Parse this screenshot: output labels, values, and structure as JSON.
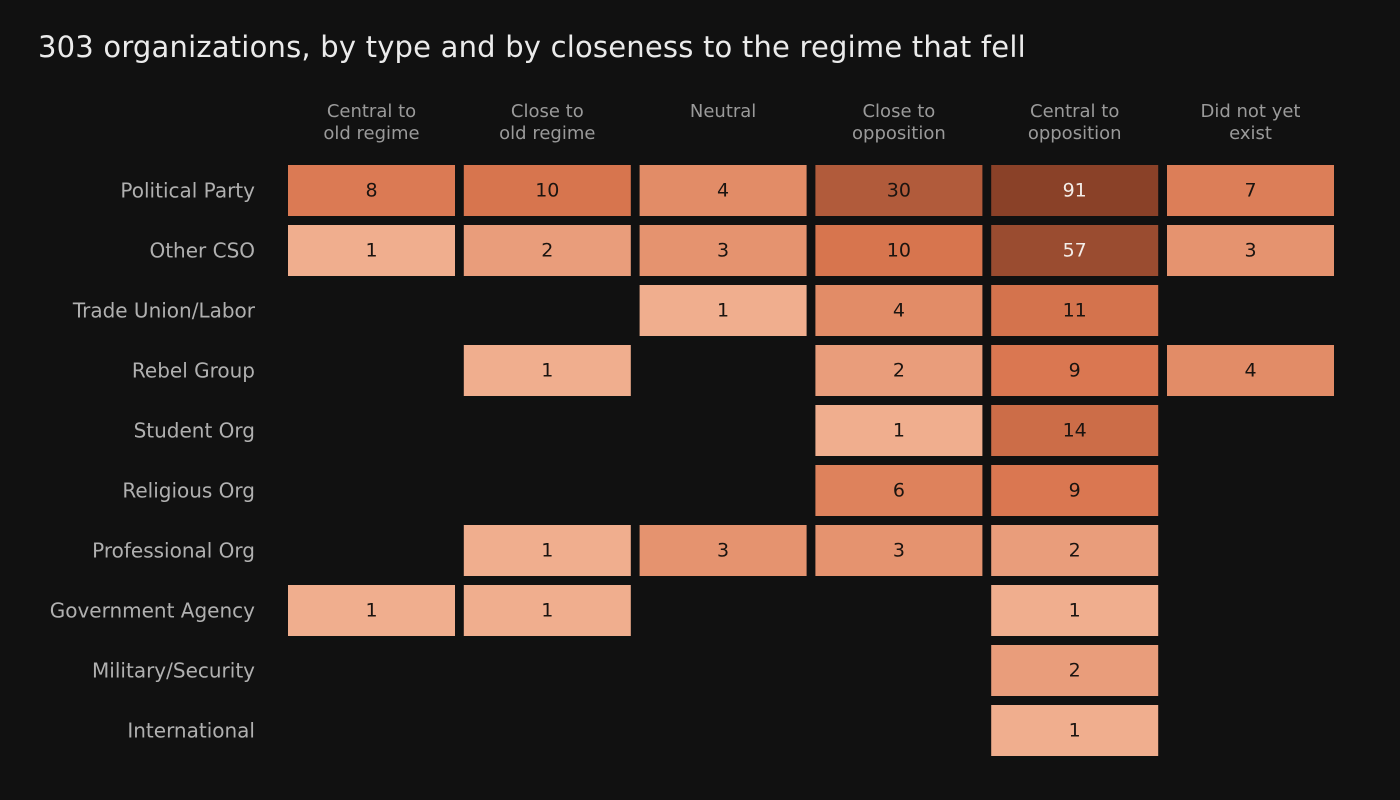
{
  "chart_data": {
    "type": "heatmap",
    "title": "303 organizations, by type and by closeness to the regime that fell",
    "columns": [
      [
        "Central to",
        "old regime"
      ],
      [
        "Close to",
        "old regime"
      ],
      [
        "Neutral"
      ],
      [
        "Close to",
        "opposition"
      ],
      [
        "Central to",
        "opposition"
      ],
      [
        "Did not yet",
        "exist"
      ]
    ],
    "rows": [
      {
        "label": "Political Party",
        "values": [
          8,
          10,
          4,
          30,
          91,
          7
        ]
      },
      {
        "label": "Other CSO",
        "values": [
          1,
          2,
          3,
          10,
          57,
          3
        ]
      },
      {
        "label": "Trade Union/Labor",
        "values": [
          null,
          null,
          1,
          4,
          11,
          null
        ]
      },
      {
        "label": "Rebel Group",
        "values": [
          null,
          1,
          null,
          2,
          9,
          4
        ]
      },
      {
        "label": "Student Org",
        "values": [
          null,
          null,
          null,
          1,
          14,
          null
        ]
      },
      {
        "label": "Religious Org",
        "values": [
          null,
          null,
          null,
          6,
          9,
          null
        ]
      },
      {
        "label": "Professional Org",
        "values": [
          null,
          1,
          3,
          3,
          2,
          null
        ]
      },
      {
        "label": "Government Agency",
        "values": [
          1,
          1,
          null,
          null,
          1,
          null
        ]
      },
      {
        "label": "Military/Security",
        "values": [
          null,
          null,
          null,
          null,
          2,
          null
        ]
      },
      {
        "label": "International",
        "values": [
          null,
          null,
          null,
          null,
          1,
          null
        ]
      }
    ],
    "color_scale": [
      "#f0ae8e",
      "#d9764f",
      "#8a4128"
    ],
    "background": "#111111"
  }
}
